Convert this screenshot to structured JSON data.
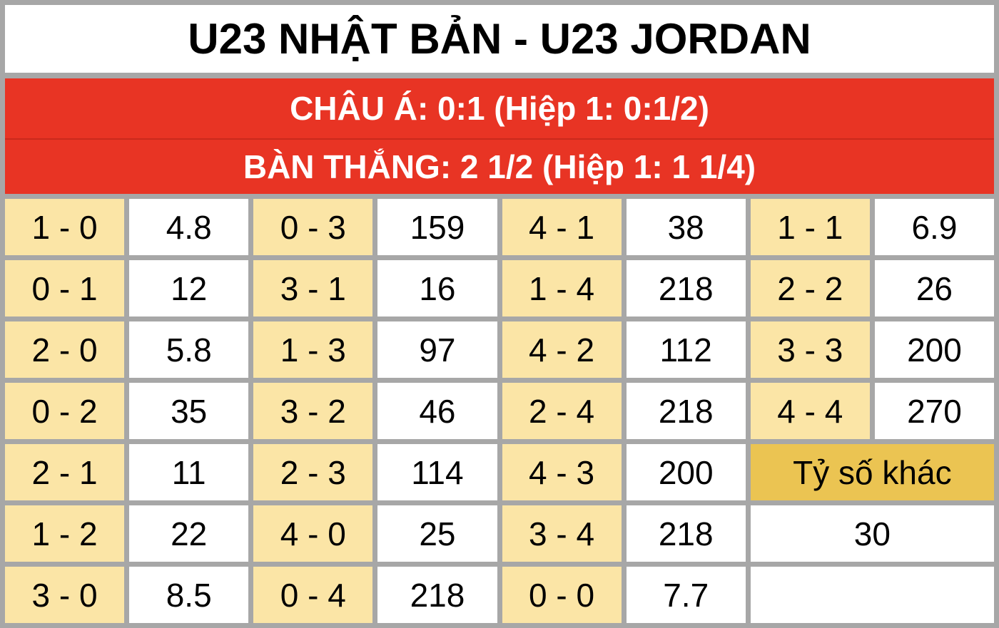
{
  "title": "U23 NHẬT BẢN - U23 JORDAN",
  "asian_handicap": "CHÂU Á: 0:1 (Hiệp 1: 0:1/2)",
  "goals_line": "BÀN THẮNG: 2 1/2 (Hiệp 1: 1 1/4)",
  "colors": {
    "red": "#e83424",
    "score_bg": "#fbe5a6",
    "other_bg": "#ebc452",
    "border": "#a7a7a7"
  },
  "columns": [
    [
      [
        "1 - 0",
        "4.8"
      ],
      [
        "0 - 1",
        "12"
      ],
      [
        "2 - 0",
        "5.8"
      ],
      [
        "0 - 2",
        "35"
      ],
      [
        "2 - 1",
        "11"
      ],
      [
        "1 - 2",
        "22"
      ],
      [
        "3 - 0",
        "8.5"
      ]
    ],
    [
      [
        "0 - 3",
        "159"
      ],
      [
        "3 - 1",
        "16"
      ],
      [
        "1 - 3",
        "97"
      ],
      [
        "3 - 2",
        "46"
      ],
      [
        "2 - 3",
        "114"
      ],
      [
        "4 - 0",
        "25"
      ],
      [
        "0 - 4",
        "218"
      ]
    ],
    [
      [
        "4 - 1",
        "38"
      ],
      [
        "1 - 4",
        "218"
      ],
      [
        "4 - 2",
        "112"
      ],
      [
        "2 - 4",
        "218"
      ],
      [
        "4 - 3",
        "200"
      ],
      [
        "3 - 4",
        "218"
      ],
      [
        "0 - 0",
        "7.7"
      ]
    ],
    [
      [
        "1 - 1",
        "6.9"
      ],
      [
        "2 - 2",
        "26"
      ],
      [
        "3 - 3",
        "200"
      ],
      [
        "4 - 4",
        "270"
      ]
    ]
  ],
  "other": {
    "label": "Tỷ số khác",
    "odds": "30"
  }
}
